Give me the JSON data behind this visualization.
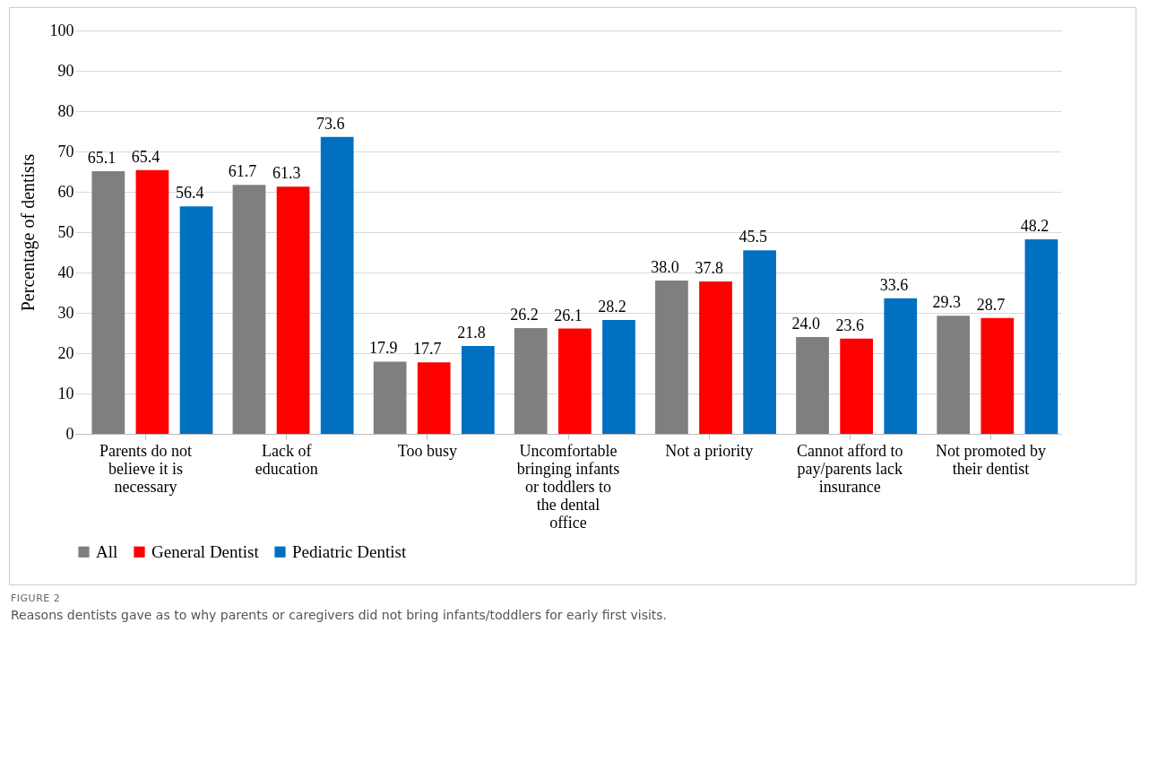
{
  "chart_data": {
    "type": "bar",
    "categories": [
      "Parents do not believe it is necessary",
      "Lack of education",
      "Too busy",
      "Uncomfortable bringing infants or toddlers to the dental office",
      "Not a priority",
      "Cannot afford to pay/parents lack insurance",
      "Not promoted by their dentist"
    ],
    "series": [
      {
        "name": "All",
        "color": "#7f7f7f",
        "values": [
          65.1,
          61.7,
          17.9,
          26.2,
          38.0,
          24.0,
          29.3
        ],
        "value_labels": [
          "65.1",
          "61.7",
          "17.9",
          "26.2",
          "38.0",
          "24.0",
          "29.3"
        ]
      },
      {
        "name": "General Dentist",
        "color": "#ff0000",
        "values": [
          65.4,
          61.3,
          17.7,
          26.1,
          37.8,
          23.6,
          28.7
        ],
        "value_labels": [
          "65.4",
          "61.3",
          "17.7",
          "26.1",
          "37.8",
          "23.6",
          "28.7"
        ]
      },
      {
        "name": "Pediatric Dentist",
        "color": "#0070c0",
        "values": [
          56.4,
          73.6,
          21.8,
          28.2,
          45.5,
          33.6,
          48.2
        ],
        "value_labels": [
          "56.4",
          "73.6",
          "21.8",
          "28.2",
          "45.5",
          "33.6",
          "48.2"
        ]
      }
    ],
    "ylabel": "Percentage of dentists",
    "ylim": [
      0,
      100
    ],
    "yticks": [
      0,
      10,
      20,
      30,
      40,
      50,
      60,
      70,
      80,
      90,
      100
    ],
    "grid": "y",
    "legend": "bottom",
    "annotations": [
      "FIGURE 2",
      "Reasons dentists gave as to why parents or caregivers did not bring infants/toddlers for early first visits."
    ]
  }
}
